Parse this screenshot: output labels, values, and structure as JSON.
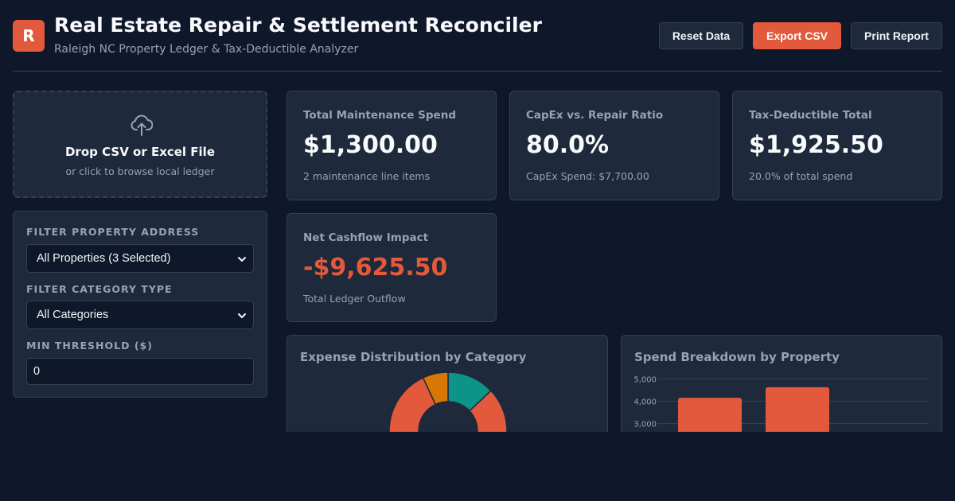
{
  "header": {
    "logo_letter": "R",
    "title": "Real Estate Repair & Settlement Reconciler",
    "subtitle": "Raleigh NC Property Ledger & Tax-Deductible Analyzer",
    "buttons": {
      "reset": "Reset Data",
      "export": "Export CSV",
      "print": "Print Report"
    }
  },
  "upload": {
    "icon": "upload-cloud-icon",
    "title": "Drop CSV or Excel File",
    "subtitle": "or click to browse local ledger"
  },
  "filters": {
    "property_label": "FILTER PROPERTY ADDRESS",
    "property_value": "All Properties (3 Selected)",
    "category_label": "FILTER CATEGORY TYPE",
    "category_value": "All Categories",
    "threshold_label": "MIN THRESHOLD ($)",
    "threshold_value": "0"
  },
  "kpis": {
    "maintenance": {
      "label": "Total Maintenance Spend",
      "value": "$1,300.00",
      "sub": "2 maintenance line items"
    },
    "capex_ratio": {
      "label": "CapEx vs. Repair Ratio",
      "value": "80.0%",
      "sub": "CapEx Spend: $7,700.00"
    },
    "tax_deductible": {
      "label": "Tax-Deductible Total",
      "value": "$1,925.50",
      "sub": "20.0% of total spend"
    },
    "net_cashflow": {
      "label": "Net Cashflow Impact",
      "value": "-$9,625.50",
      "sub": "Total Ledger Outflow"
    }
  },
  "colors": {
    "accent": "#e25a3b",
    "teal": "#0d9488",
    "amber": "#d97706",
    "negative": "#e25a3b"
  },
  "chart_data": [
    {
      "type": "pie",
      "title": "Expense Distribution by Category",
      "donut": true,
      "slices": [
        {
          "value": 13,
          "color": "#0d9488"
        },
        {
          "value": 80,
          "color": "#e25a3b"
        },
        {
          "value": 7,
          "color": "#d97706"
        }
      ]
    },
    {
      "type": "bar",
      "title": "Spend Breakdown by Property",
      "ylim": [
        0,
        5000
      ],
      "y_ticks": [
        "5,000",
        "4,000",
        "3,000"
      ],
      "y_tick_values": [
        5000,
        4000,
        3000
      ],
      "values": [
        4150,
        4630
      ],
      "color": "#e25a3b"
    }
  ]
}
